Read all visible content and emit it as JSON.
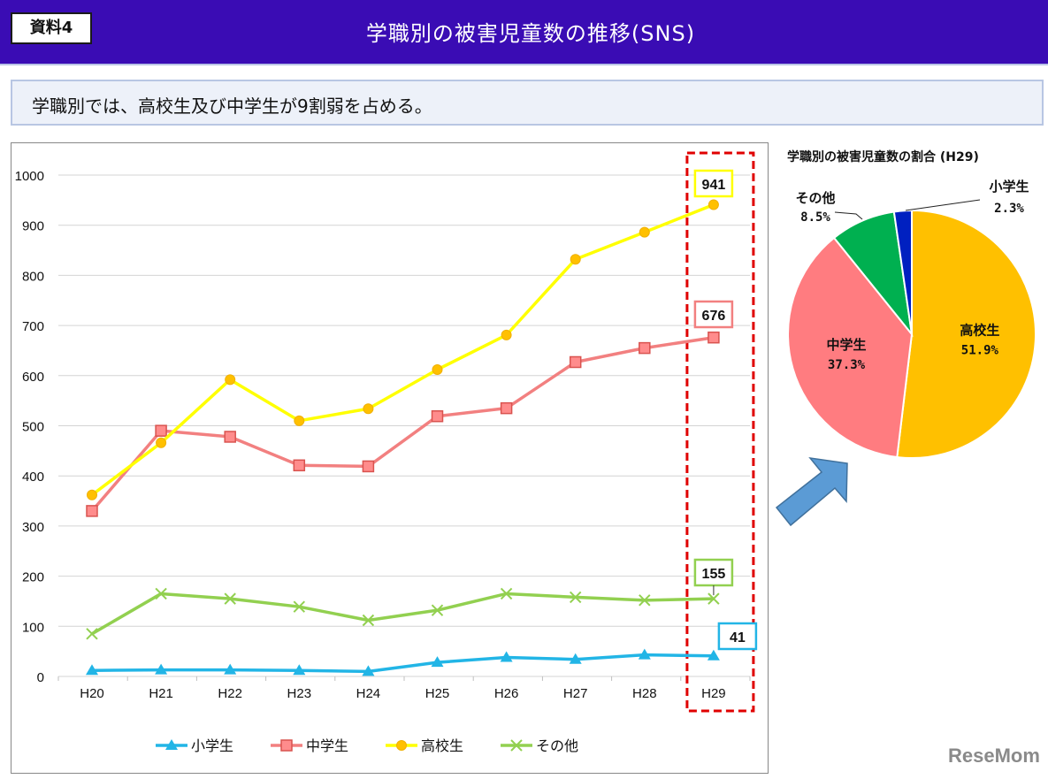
{
  "header": {
    "label": "資料4",
    "title": "学職別の被害児童数の推移(SNS)",
    "color": "#3a0cb4"
  },
  "summary": {
    "text": "学職別では、高校生及び中学生が9割弱を占める。"
  },
  "watermark": "ReseMom",
  "chart_data": [
    {
      "type": "line",
      "categories": [
        "H20",
        "H21",
        "H22",
        "H23",
        "H24",
        "H25",
        "H26",
        "H27",
        "H28",
        "H29"
      ],
      "ylim": [
        0,
        1000
      ],
      "yticks": [
        0,
        100,
        200,
        300,
        400,
        500,
        600,
        700,
        800,
        900,
        1000
      ],
      "grid": true,
      "legend_position": "bottom",
      "series": [
        {
          "name": "小学生",
          "color": "#22b5e6",
          "marker": "triangle",
          "values": [
            12,
            13,
            13,
            12,
            10,
            28,
            38,
            34,
            43,
            41
          ]
        },
        {
          "name": "中学生",
          "color": "#f28080",
          "marker": "square",
          "values": [
            330,
            490,
            478,
            421,
            419,
            519,
            535,
            627,
            655,
            676
          ]
        },
        {
          "name": "高校生",
          "color": "#ffff00",
          "marker": "circle",
          "values": [
            362,
            466,
            592,
            510,
            534,
            612,
            681,
            832,
            886,
            941
          ]
        },
        {
          "name": "その他",
          "color": "#92d050",
          "marker": "x",
          "values": [
            85,
            165,
            155,
            139,
            112,
            132,
            165,
            158,
            152,
            155
          ]
        }
      ],
      "annotations": [
        "941",
        "676",
        "155",
        "41"
      ],
      "highlight_category": "H29"
    },
    {
      "type": "pie",
      "title": "学職別の被害児童数の割合 (H29)",
      "slices": [
        {
          "label": "高校生",
          "value": 51.9,
          "value_label": "51.9%",
          "color": "#ffc000"
        },
        {
          "label": "中学生",
          "value": 37.3,
          "value_label": "37.3%",
          "color": "#ff7c80"
        },
        {
          "label": "その他",
          "value": 8.5,
          "value_label": "8.5%",
          "color": "#00b050"
        },
        {
          "label": "小学生",
          "value": 2.3,
          "value_label": "2.3%",
          "color": "#0020c0"
        }
      ]
    }
  ]
}
